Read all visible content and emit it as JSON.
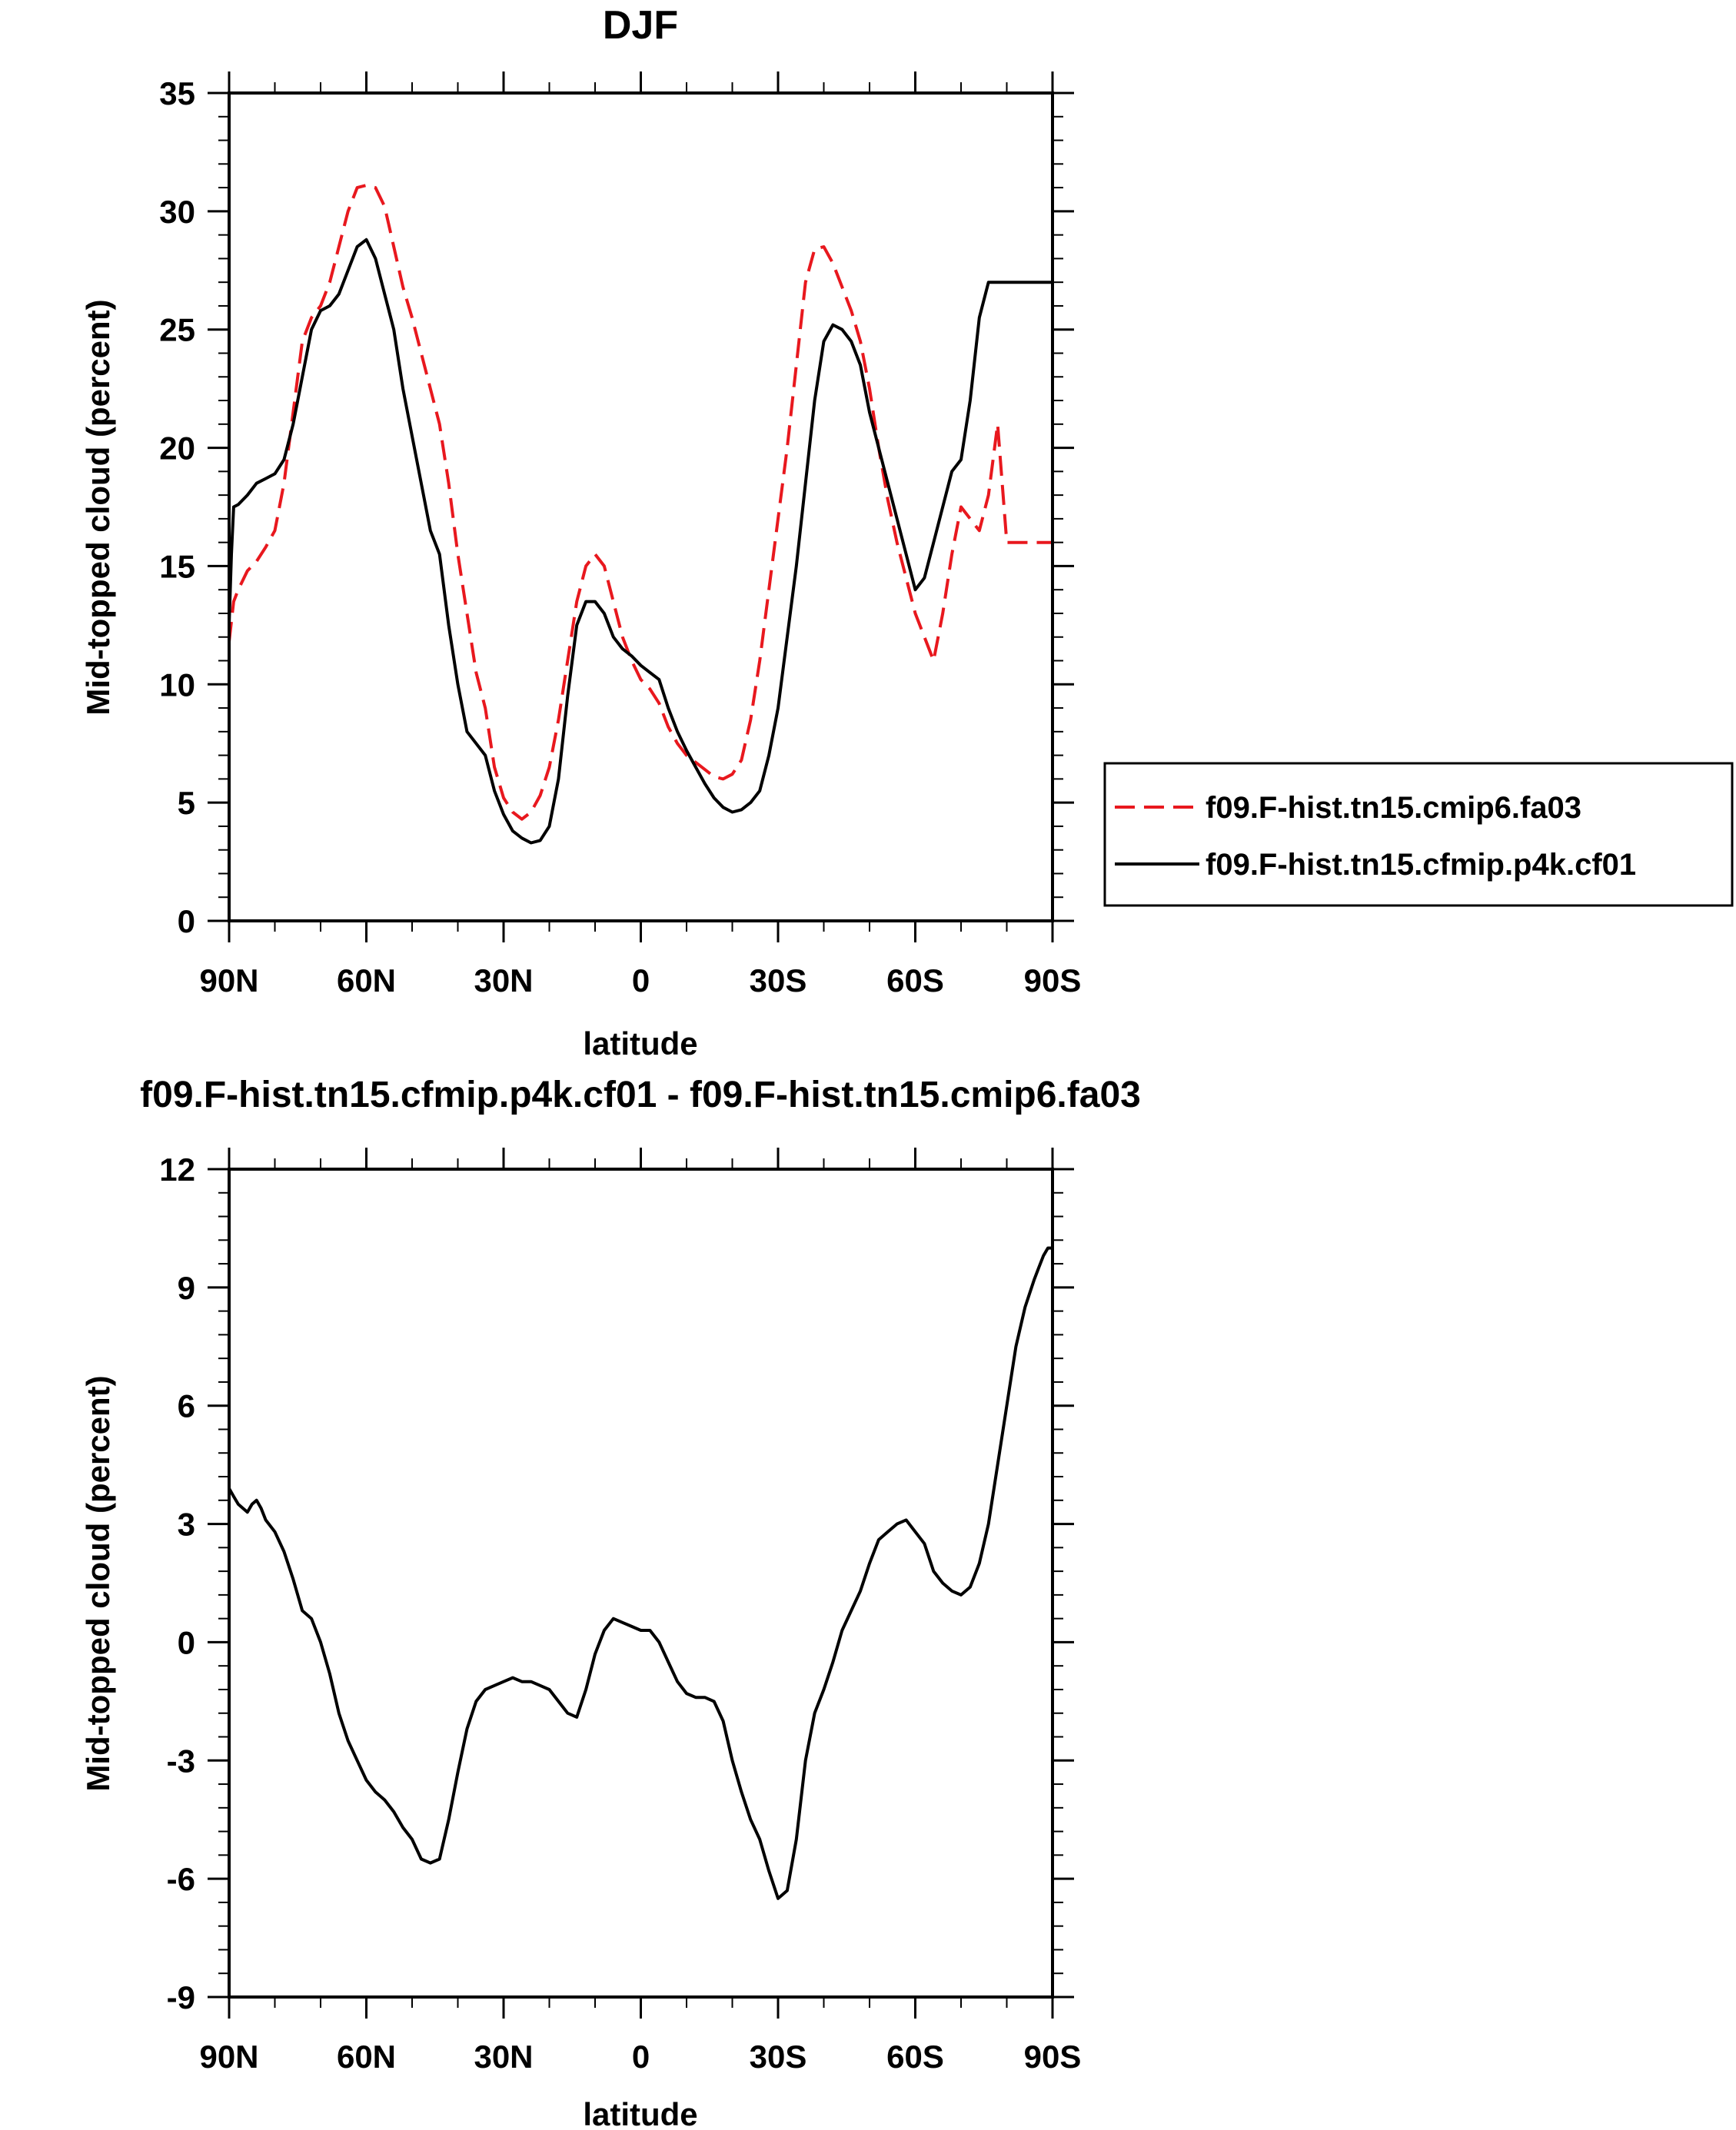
{
  "chart_data": [
    {
      "type": "line",
      "title": "DJF",
      "xlabel": "latitude",
      "ylabel": "Mid-topped cloud (percent)",
      "xlim": [
        90,
        -90
      ],
      "ylim": [
        0,
        35
      ],
      "x_tick_values": [
        90,
        60,
        30,
        0,
        -30,
        -60,
        -90
      ],
      "x_tick_labels": [
        "90N",
        "60N",
        "30N",
        "0",
        "30S",
        "60S",
        "90S"
      ],
      "y_ticks": [
        0,
        5,
        10,
        15,
        20,
        25,
        30,
        35
      ],
      "y_tick_labels": [
        "0",
        "5",
        "10",
        "15",
        "20",
        "25",
        "30",
        "35"
      ],
      "legend_position": "right",
      "series": [
        {
          "name": "f09.F-hist.tn15.cmip6.fa03",
          "color": "#e8181e",
          "dash": "dashed",
          "x": [
            90,
            89,
            88,
            86,
            84,
            82,
            80,
            78,
            76,
            74,
            72,
            70,
            68,
            66,
            64,
            62,
            60,
            58,
            56,
            54,
            52,
            50,
            48,
            46,
            44,
            42,
            40,
            38,
            36,
            34,
            32,
            30,
            28,
            26,
            24,
            22,
            20,
            18,
            16,
            14,
            12,
            10,
            8,
            6,
            4,
            2,
            0,
            -2,
            -4,
            -6,
            -8,
            -10,
            -12,
            -14,
            -16,
            -18,
            -20,
            -22,
            -24,
            -26,
            -28,
            -30,
            -32,
            -34,
            -36,
            -38,
            -40,
            -42,
            -44,
            -46,
            -48,
            -50,
            -52,
            -54,
            -56,
            -58,
            -60,
            -62,
            -64,
            -66,
            -68,
            -70,
            -72,
            -74,
            -76,
            -78,
            -80,
            -81,
            -82,
            -84,
            -86,
            -87,
            -88,
            -89,
            -90
          ],
          "y": [
            11.8,
            13.5,
            14.0,
            14.8,
            15.2,
            15.8,
            16.5,
            18.5,
            21.5,
            24.5,
            25.5,
            26.0,
            27.0,
            28.5,
            30.0,
            31.0,
            31.1,
            31.0,
            30.2,
            28.5,
            26.8,
            25.5,
            24.0,
            22.5,
            21.0,
            18.5,
            15.5,
            13.0,
            10.5,
            9.0,
            6.5,
            5.2,
            4.6,
            4.3,
            4.6,
            5.3,
            6.5,
            8.5,
            11.0,
            13.5,
            15.0,
            15.5,
            15.0,
            13.5,
            12.0,
            11.0,
            10.2,
            9.8,
            9.2,
            8.2,
            7.5,
            7.0,
            6.7,
            6.4,
            6.1,
            6.0,
            6.2,
            6.8,
            8.5,
            11.0,
            14.0,
            17.0,
            20.0,
            23.5,
            27.0,
            28.4,
            28.5,
            27.8,
            26.8,
            25.8,
            24.5,
            22.5,
            20.0,
            17.8,
            16.0,
            14.5,
            13.0,
            12.0,
            11.0,
            13.0,
            15.5,
            17.5,
            17.0,
            16.5,
            18.0,
            21.0,
            16.0,
            16.0,
            16.0,
            16.0,
            16.0,
            16.0,
            16.0,
            16.0,
            16.0
          ]
        },
        {
          "name": "f09.F-hist.tn15.cfmip.p4k.cf01",
          "color": "#000000",
          "dash": "solid",
          "x": [
            90,
            89.5,
            89,
            88,
            86,
            84,
            82,
            80,
            78,
            76,
            74,
            72,
            70,
            68,
            66,
            64,
            62,
            60,
            58,
            56,
            54,
            52,
            50,
            48,
            46,
            44,
            42,
            40,
            38,
            36,
            34,
            32,
            30,
            28,
            26,
            24,
            22,
            20,
            18,
            16,
            14,
            12,
            10,
            8,
            6,
            4,
            2,
            0,
            -2,
            -4,
            -6,
            -8,
            -10,
            -12,
            -14,
            -16,
            -18,
            -20,
            -22,
            -24,
            -26,
            -28,
            -30,
            -32,
            -34,
            -36,
            -38,
            -40,
            -42,
            -44,
            -46,
            -48,
            -50,
            -52,
            -54,
            -56,
            -58,
            -60,
            -62,
            -64,
            -66,
            -68,
            -70,
            -72,
            -74,
            -76,
            -78,
            -80,
            -82,
            -84,
            -86,
            -87,
            -88,
            -89,
            -90
          ],
          "y": [
            12.5,
            15.5,
            17.5,
            17.6,
            18.0,
            18.5,
            18.7,
            18.9,
            19.5,
            21.0,
            23.0,
            25.0,
            25.8,
            26.0,
            26.5,
            27.5,
            28.5,
            28.8,
            28.0,
            26.5,
            25.0,
            22.5,
            20.5,
            18.5,
            16.5,
            15.5,
            12.5,
            10.0,
            8.0,
            7.5,
            7.0,
            5.5,
            4.5,
            3.8,
            3.5,
            3.3,
            3.4,
            4.0,
            6.0,
            9.5,
            12.5,
            13.5,
            13.5,
            13.0,
            12.0,
            11.5,
            11.2,
            10.8,
            10.5,
            10.2,
            9.0,
            8.0,
            7.2,
            6.5,
            5.8,
            5.2,
            4.8,
            4.6,
            4.7,
            5.0,
            5.5,
            7.0,
            9.0,
            12.0,
            15.0,
            18.5,
            22.0,
            24.5,
            25.2,
            25.0,
            24.5,
            23.5,
            21.5,
            20.0,
            18.5,
            17.0,
            15.5,
            14.0,
            14.5,
            16.0,
            17.5,
            19.0,
            19.5,
            22.0,
            25.5,
            27.0,
            27.0,
            27.0,
            27.0,
            27.0,
            27.0,
            27.0,
            27.0,
            27.0,
            27.0
          ]
        }
      ]
    },
    {
      "type": "line",
      "title": "f09.F-hist.tn15.cfmip.p4k.cf01 - f09.F-hist.tn15.cmip6.fa03",
      "xlabel": "latitude",
      "ylabel": "Mid-topped cloud (percent)",
      "xlim": [
        90,
        -90
      ],
      "ylim": [
        -9,
        12
      ],
      "x_tick_values": [
        90,
        60,
        30,
        0,
        -30,
        -60,
        -90
      ],
      "x_tick_labels": [
        "90N",
        "60N",
        "30N",
        "0",
        "30S",
        "60S",
        "90S"
      ],
      "y_ticks": [
        -9,
        -6,
        -3,
        0,
        3,
        6,
        9,
        12
      ],
      "y_tick_labels": [
        "-9",
        "-6",
        "-3",
        "0",
        "3",
        "6",
        "9",
        "12"
      ],
      "series": [
        {
          "color": "#000000",
          "dash": "solid",
          "x": [
            90,
            89,
            88,
            87,
            86,
            85,
            84,
            83,
            82,
            80,
            78,
            76,
            74,
            72,
            70,
            68,
            66,
            64,
            62,
            60,
            58,
            56,
            54,
            52,
            50,
            48,
            46,
            44,
            42,
            40,
            38,
            36,
            34,
            32,
            30,
            28,
            26,
            24,
            22,
            20,
            18,
            16,
            14,
            12,
            10,
            8,
            6,
            4,
            2,
            0,
            -2,
            -4,
            -6,
            -8,
            -10,
            -12,
            -14,
            -16,
            -18,
            -20,
            -22,
            -24,
            -26,
            -28,
            -30,
            -32,
            -34,
            -36,
            -38,
            -40,
            -42,
            -44,
            -46,
            -48,
            -50,
            -52,
            -54,
            -56,
            -58,
            -60,
            -62,
            -64,
            -66,
            -68,
            -70,
            -72,
            -74,
            -76,
            -78,
            -80,
            -82,
            -84,
            -86,
            -87,
            -88,
            -89,
            -90
          ],
          "y": [
            3.9,
            3.7,
            3.5,
            3.4,
            3.3,
            3.5,
            3.6,
            3.4,
            3.1,
            2.8,
            2.3,
            1.6,
            0.8,
            0.6,
            0.0,
            -0.8,
            -1.8,
            -2.5,
            -3.0,
            -3.5,
            -3.8,
            -4.0,
            -4.3,
            -4.7,
            -5.0,
            -5.5,
            -5.6,
            -5.5,
            -4.5,
            -3.3,
            -2.2,
            -1.5,
            -1.2,
            -1.1,
            -1.0,
            -0.9,
            -1.0,
            -1.0,
            -1.1,
            -1.2,
            -1.5,
            -1.8,
            -1.9,
            -1.2,
            -0.3,
            0.3,
            0.6,
            0.5,
            0.4,
            0.3,
            0.3,
            0.0,
            -0.5,
            -1.0,
            -1.3,
            -1.4,
            -1.4,
            -1.5,
            -2.0,
            -3.0,
            -3.8,
            -4.5,
            -5.0,
            -5.8,
            -6.5,
            -6.3,
            -5.0,
            -3.0,
            -1.8,
            -1.2,
            -0.5,
            0.3,
            0.8,
            1.3,
            2.0,
            2.6,
            2.8,
            3.0,
            3.1,
            2.8,
            2.5,
            1.8,
            1.5,
            1.3,
            1.2,
            1.4,
            2.0,
            3.0,
            4.5,
            6.0,
            7.5,
            8.5,
            9.2,
            9.5,
            9.8,
            10.0,
            10.0
          ]
        }
      ]
    }
  ]
}
